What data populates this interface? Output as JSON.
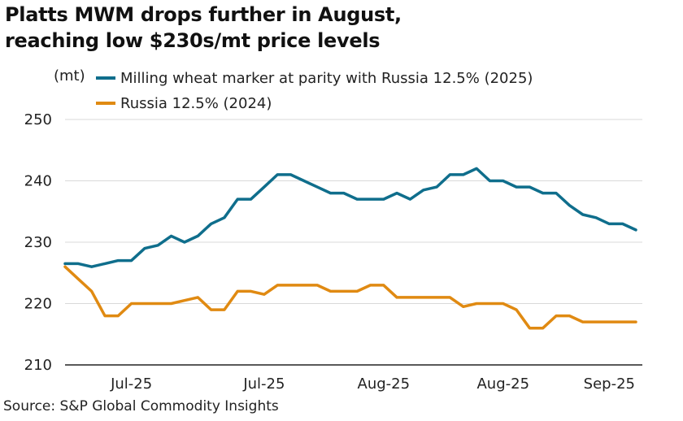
{
  "title": {
    "line1": "Platts MWM drops further in August,",
    "line2": "reaching low $230s/mt price levels"
  },
  "source": "Source: S&P Global Commodity Insights",
  "chart_data": {
    "type": "line",
    "title": "Platts MWM drops further in August, reaching low $230s/mt price levels",
    "ylabel": "(mt)",
    "xlabel": "",
    "ylim": [
      210,
      250
    ],
    "yticks": [
      210,
      220,
      230,
      240,
      250
    ],
    "grid": true,
    "legend_position": "top",
    "x_tick_labels": [
      "Jul-25",
      "Jul-25",
      "Aug-25",
      "Aug-25",
      "Sep-25"
    ],
    "x_tick_index": [
      5,
      15,
      24,
      33,
      41
    ],
    "colors": {
      "series1": "#0f6e8c",
      "series2": "#e08a12",
      "grid": "#d9d9d9",
      "axis": "#222222"
    },
    "series": [
      {
        "name": "Milling wheat marker at parity with Russia 12.5% (2025)",
        "values": [
          226.5,
          226.5,
          226,
          226.5,
          227,
          227,
          229,
          229.5,
          231,
          230,
          231,
          233,
          234,
          237,
          237,
          239,
          241,
          241,
          240,
          239,
          238,
          238,
          237,
          237,
          237,
          238,
          237,
          238.5,
          239,
          241,
          241,
          242,
          240,
          240,
          239,
          239,
          238,
          238,
          236,
          234.5,
          234,
          233,
          233,
          232
        ]
      },
      {
        "name": "Russia 12.5% (2024)",
        "values": [
          226,
          224,
          222,
          218,
          218,
          220,
          220,
          220,
          220,
          220.5,
          221,
          219,
          219,
          222,
          222,
          221.5,
          223,
          223,
          223,
          223,
          222,
          222,
          222,
          223,
          223,
          221,
          221,
          221,
          221,
          221,
          219.5,
          220,
          220,
          220,
          219,
          216,
          216,
          218,
          218,
          217,
          217,
          217,
          217,
          217
        ]
      }
    ]
  }
}
